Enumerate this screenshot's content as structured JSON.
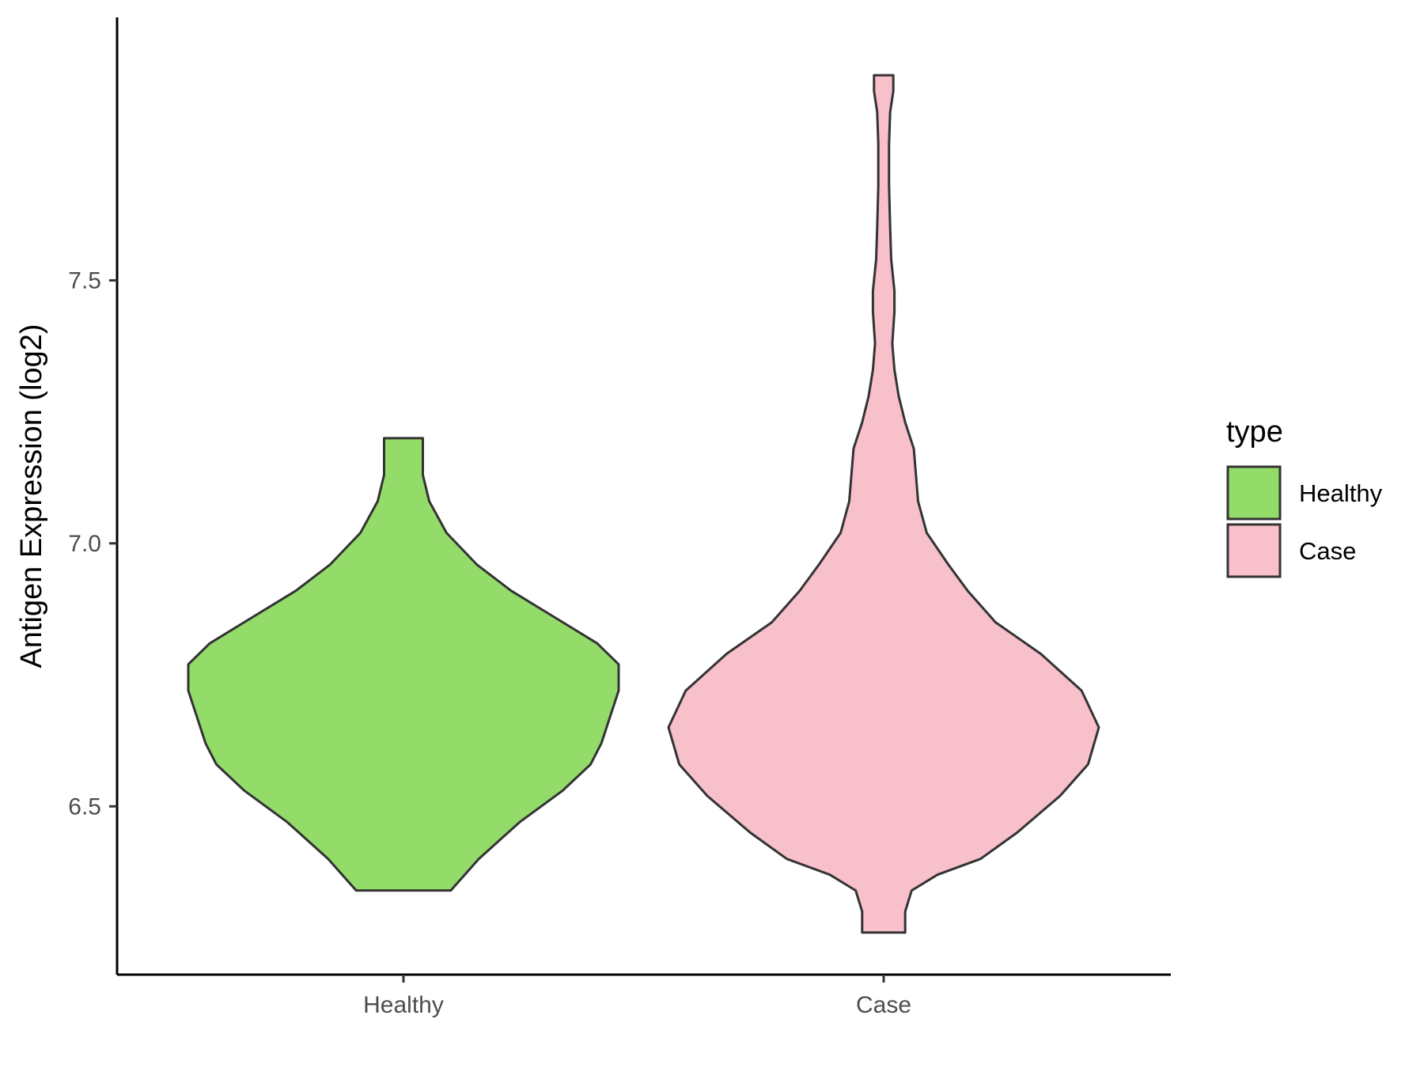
{
  "chart_data": {
    "type": "violin",
    "xlabel": "",
    "ylabel": "Antigen Expression (log2)",
    "ylim": [
      6.18,
      8.0
    ],
    "yticks": [
      6.5,
      7.0,
      7.5
    ],
    "ytick_labels": [
      "6.5",
      "7.0",
      "7.5"
    ],
    "categories": [
      "Healthy",
      "Case"
    ],
    "legend": {
      "title": "type",
      "position": "right",
      "entries": [
        "Healthy",
        "Case"
      ]
    },
    "colors": {
      "Healthy": "#93dc6a",
      "Case": "#f7c0cb",
      "outline": "#333333"
    },
    "series": [
      {
        "category": "Healthy",
        "y_range": [
          6.34,
          7.2
        ],
        "density_profile": [
          [
            6.34,
            0.22
          ],
          [
            6.4,
            0.35
          ],
          [
            6.47,
            0.54
          ],
          [
            6.53,
            0.74
          ],
          [
            6.58,
            0.87
          ],
          [
            6.62,
            0.92
          ],
          [
            6.67,
            0.96
          ],
          [
            6.72,
            1.0
          ],
          [
            6.77,
            1.0
          ],
          [
            6.81,
            0.9
          ],
          [
            6.86,
            0.7
          ],
          [
            6.91,
            0.5
          ],
          [
            6.96,
            0.34
          ],
          [
            7.02,
            0.2
          ],
          [
            7.08,
            0.12
          ],
          [
            7.13,
            0.09
          ],
          [
            7.2,
            0.09
          ]
        ]
      },
      {
        "category": "Case",
        "y_range": [
          6.26,
          7.89
        ],
        "density_profile": [
          [
            6.26,
            0.1
          ],
          [
            6.3,
            0.1
          ],
          [
            6.34,
            0.13
          ],
          [
            6.37,
            0.25
          ],
          [
            6.4,
            0.45
          ],
          [
            6.45,
            0.62
          ],
          [
            6.52,
            0.82
          ],
          [
            6.58,
            0.95
          ],
          [
            6.65,
            1.0
          ],
          [
            6.72,
            0.92
          ],
          [
            6.79,
            0.73
          ],
          [
            6.85,
            0.52
          ],
          [
            6.91,
            0.39
          ],
          [
            6.96,
            0.3
          ],
          [
            7.02,
            0.2
          ],
          [
            7.08,
            0.16
          ],
          [
            7.13,
            0.15
          ],
          [
            7.18,
            0.14
          ],
          [
            7.23,
            0.1
          ],
          [
            7.28,
            0.07
          ],
          [
            7.33,
            0.05
          ],
          [
            7.38,
            0.04
          ],
          [
            7.44,
            0.05
          ],
          [
            7.48,
            0.05
          ],
          [
            7.54,
            0.035
          ],
          [
            7.6,
            0.03
          ],
          [
            7.68,
            0.025
          ],
          [
            7.76,
            0.025
          ],
          [
            7.82,
            0.03
          ],
          [
            7.86,
            0.045
          ],
          [
            7.89,
            0.045
          ]
        ]
      }
    ]
  }
}
